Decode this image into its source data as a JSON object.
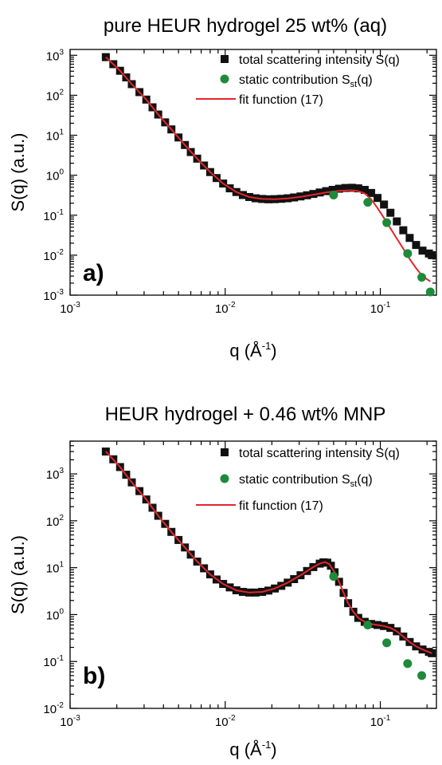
{
  "chart_data": [
    {
      "type": "scatter",
      "title": "pure HEUR hydrogel 25 wt% (aq)",
      "panel_label": "a)",
      "xlabel_main": "q (Å",
      "xlabel_sup": "-1",
      "xlabel_end": ")",
      "ylabel": "S(q) (a.u.)",
      "xscale": "log",
      "yscale": "log",
      "xlim": [
        0.001,
        0.23
      ],
      "ylim": [
        0.001,
        1400
      ],
      "x_ticks": [
        {
          "value": 0.001,
          "base": "10",
          "exp": "-3"
        },
        {
          "value": 0.01,
          "base": "10",
          "exp": "-2"
        },
        {
          "value": 0.1,
          "base": "10",
          "exp": "-1"
        }
      ],
      "y_ticks": [
        {
          "value": 0.001,
          "base": "10",
          "exp": "-3"
        },
        {
          "value": 0.01,
          "base": "10",
          "exp": "-2"
        },
        {
          "value": 0.1,
          "base": "10",
          "exp": "-1"
        },
        {
          "value": 1,
          "base": "10",
          "exp": "0"
        },
        {
          "value": 10,
          "base": "10",
          "exp": "1"
        },
        {
          "value": 100,
          "base": "10",
          "exp": "2"
        },
        {
          "value": 1000,
          "base": "10",
          "exp": "3"
        }
      ],
      "legend_position": "top-right",
      "series": [
        {
          "name": "total scattering intensity S(q)",
          "label_main": "total scattering intensity S(q)",
          "label_sub": "",
          "label_end": "",
          "marker": "square",
          "color": "#111111",
          "points": [
            [
              0.0017,
              900
            ],
            [
              0.0019,
              600
            ],
            [
              0.0021,
              410
            ],
            [
              0.0023,
              280
            ],
            [
              0.0025,
              190
            ],
            [
              0.0028,
              120
            ],
            [
              0.0031,
              78
            ],
            [
              0.0034,
              50
            ],
            [
              0.0037,
              33
            ],
            [
              0.0041,
              21
            ],
            [
              0.0045,
              14
            ],
            [
              0.005,
              8.8
            ],
            [
              0.0055,
              5.7
            ],
            [
              0.006,
              3.8
            ],
            [
              0.0066,
              2.6
            ],
            [
              0.0073,
              1.75
            ],
            [
              0.008,
              1.2
            ],
            [
              0.0088,
              0.85
            ],
            [
              0.0097,
              0.62
            ],
            [
              0.0107,
              0.47
            ],
            [
              0.0118,
              0.38
            ],
            [
              0.013,
              0.32
            ],
            [
              0.0143,
              0.285
            ],
            [
              0.0157,
              0.265
            ],
            [
              0.0173,
              0.255
            ],
            [
              0.019,
              0.25
            ],
            [
              0.0209,
              0.252
            ],
            [
              0.023,
              0.257
            ],
            [
              0.0253,
              0.265
            ],
            [
              0.0278,
              0.278
            ],
            [
              0.0306,
              0.295
            ],
            [
              0.0337,
              0.315
            ],
            [
              0.037,
              0.34
            ],
            [
              0.0407,
              0.37
            ],
            [
              0.0448,
              0.4
            ],
            [
              0.0493,
              0.43
            ],
            [
              0.0542,
              0.46
            ],
            [
              0.0596,
              0.48
            ],
            [
              0.0656,
              0.485
            ],
            [
              0.0721,
              0.47
            ],
            [
              0.0793,
              0.43
            ],
            [
              0.0873,
              0.36
            ],
            [
              0.096,
              0.27
            ],
            [
              0.1056,
              0.185
            ],
            [
              0.1162,
              0.115
            ],
            [
              0.1278,
              0.07
            ],
            [
              0.1406,
              0.042
            ],
            [
              0.1546,
              0.027
            ],
            [
              0.1701,
              0.018
            ],
            [
              0.1871,
              0.013
            ],
            [
              0.2058,
              0.011
            ],
            [
              0.215,
              0.01
            ]
          ]
        },
        {
          "name": "static contribution Sst(q)",
          "label_main": "static contribution S",
          "label_sub": "st",
          "label_end": "(q)",
          "marker": "circle",
          "color": "#1e8a3a",
          "points": [
            [
              0.05,
              0.32
            ],
            [
              0.083,
              0.21
            ],
            [
              0.11,
              0.065
            ],
            [
              0.15,
              0.011
            ],
            [
              0.185,
              0.0028
            ],
            [
              0.21,
              0.0012
            ]
          ]
        },
        {
          "name": "fit function (17)",
          "label_main": "fit function (17)",
          "label_sub": "",
          "label_end": "",
          "marker": "line",
          "color": "#e3262a",
          "points": [
            [
              0.0017,
              900
            ],
            [
              0.0021,
              410
            ],
            [
              0.0025,
              190
            ],
            [
              0.0031,
              78
            ],
            [
              0.0037,
              33
            ],
            [
              0.0045,
              14
            ],
            [
              0.0055,
              5.7
            ],
            [
              0.0066,
              2.6
            ],
            [
              0.008,
              1.2
            ],
            [
              0.0097,
              0.62
            ],
            [
              0.0118,
              0.38
            ],
            [
              0.0143,
              0.285
            ],
            [
              0.0173,
              0.255
            ],
            [
              0.0209,
              0.25
            ],
            [
              0.0253,
              0.262
            ],
            [
              0.0306,
              0.288
            ],
            [
              0.037,
              0.325
            ],
            [
              0.0448,
              0.37
            ],
            [
              0.0542,
              0.405
            ],
            [
              0.0656,
              0.42
            ],
            [
              0.0721,
              0.4
            ],
            [
              0.0793,
              0.35
            ],
            [
              0.0873,
              0.25
            ],
            [
              0.096,
              0.15
            ],
            [
              0.1056,
              0.085
            ],
            [
              0.1162,
              0.047
            ],
            [
              0.1278,
              0.026
            ],
            [
              0.1406,
              0.0145
            ],
            [
              0.1546,
              0.008
            ],
            [
              0.1701,
              0.0047
            ],
            [
              0.1871,
              0.003
            ],
            [
              0.21,
              0.0022
            ]
          ]
        }
      ]
    },
    {
      "type": "scatter",
      "title": "HEUR hydrogel + 0.46 wt% MNP",
      "panel_label": "b)",
      "xlabel_main": "q (Å",
      "xlabel_sup": "-1",
      "xlabel_end": ")",
      "ylabel": "S(q) (a.u.)",
      "xscale": "log",
      "yscale": "log",
      "xlim": [
        0.001,
        0.23
      ],
      "ylim": [
        0.01,
        5000
      ],
      "x_ticks": [
        {
          "value": 0.001,
          "base": "10",
          "exp": "-3"
        },
        {
          "value": 0.01,
          "base": "10",
          "exp": "-2"
        },
        {
          "value": 0.1,
          "base": "10",
          "exp": "-1"
        }
      ],
      "y_ticks": [
        {
          "value": 0.01,
          "base": "10",
          "exp": "-2"
        },
        {
          "value": 0.1,
          "base": "10",
          "exp": "-1"
        },
        {
          "value": 1,
          "base": "10",
          "exp": "0"
        },
        {
          "value": 10,
          "base": "10",
          "exp": "1"
        },
        {
          "value": 100,
          "base": "10",
          "exp": "2"
        },
        {
          "value": 1000,
          "base": "10",
          "exp": "3"
        }
      ],
      "legend_position": "top-right",
      "series": [
        {
          "name": "total scattering intensity S(q)",
          "label_main": "total scattering intensity S(q)",
          "label_sub": "",
          "label_end": "",
          "marker": "square",
          "color": "#111111",
          "points": [
            [
              0.0017,
              3000
            ],
            [
              0.0019,
              2050
            ],
            [
              0.0021,
              1400
            ],
            [
              0.0023,
              960
            ],
            [
              0.0025,
              660
            ],
            [
              0.0028,
              430
            ],
            [
              0.0031,
              285
            ],
            [
              0.0034,
              190
            ],
            [
              0.0037,
              128
            ],
            [
              0.0041,
              86
            ],
            [
              0.0045,
              58
            ],
            [
              0.005,
              39
            ],
            [
              0.0055,
              27
            ],
            [
              0.006,
              19
            ],
            [
              0.0066,
              13.5
            ],
            [
              0.0073,
              9.7
            ],
            [
              0.008,
              7.2
            ],
            [
              0.0088,
              5.6
            ],
            [
              0.0097,
              4.5
            ],
            [
              0.0107,
              3.8
            ],
            [
              0.0118,
              3.3
            ],
            [
              0.013,
              3.05
            ],
            [
              0.0143,
              2.95
            ],
            [
              0.0157,
              2.95
            ],
            [
              0.0173,
              3.05
            ],
            [
              0.019,
              3.25
            ],
            [
              0.0209,
              3.6
            ],
            [
              0.023,
              4.1
            ],
            [
              0.0253,
              4.8
            ],
            [
              0.0278,
              5.7
            ],
            [
              0.0306,
              6.9
            ],
            [
              0.0337,
              8.5
            ],
            [
              0.037,
              10.3
            ],
            [
              0.0407,
              12.2
            ],
            [
              0.043,
              13.0
            ],
            [
              0.0455,
              12.8
            ],
            [
              0.048,
              11.0
            ],
            [
              0.0507,
              8.0
            ],
            [
              0.0542,
              5.0
            ],
            [
              0.058,
              2.9
            ],
            [
              0.062,
              1.75
            ],
            [
              0.067,
              1.15
            ],
            [
              0.0721,
              0.85
            ],
            [
              0.0793,
              0.7
            ],
            [
              0.0873,
              0.63
            ],
            [
              0.096,
              0.6
            ],
            [
              0.1056,
              0.57
            ],
            [
              0.1162,
              0.52
            ],
            [
              0.1278,
              0.44
            ],
            [
              0.1406,
              0.34
            ],
            [
              0.1546,
              0.26
            ],
            [
              0.1701,
              0.21
            ],
            [
              0.1871,
              0.18
            ],
            [
              0.2058,
              0.16
            ],
            [
              0.215,
              0.15
            ]
          ]
        },
        {
          "name": "static contribution Sst(q)",
          "label_main": "static contribution S",
          "label_sub": "st",
          "label_end": "(q)",
          "marker": "circle",
          "color": "#1e8a3a",
          "points": [
            [
              0.05,
              6.5
            ],
            [
              0.083,
              0.6
            ],
            [
              0.11,
              0.25
            ],
            [
              0.15,
              0.09
            ],
            [
              0.185,
              0.05
            ]
          ]
        },
        {
          "name": "fit function (17)",
          "label_main": "fit function (17)",
          "label_sub": "",
          "label_end": "",
          "marker": "line",
          "color": "#e3262a",
          "points": [
            [
              0.0017,
              3000
            ],
            [
              0.0021,
              1400
            ],
            [
              0.0025,
              660
            ],
            [
              0.0031,
              285
            ],
            [
              0.0037,
              128
            ],
            [
              0.0045,
              58
            ],
            [
              0.0055,
              27
            ],
            [
              0.0066,
              13.5
            ],
            [
              0.008,
              7.2
            ],
            [
              0.0097,
              4.5
            ],
            [
              0.0118,
              3.3
            ],
            [
              0.0143,
              2.95
            ],
            [
              0.0173,
              3.05
            ],
            [
              0.0209,
              3.6
            ],
            [
              0.0253,
              4.8
            ],
            [
              0.0306,
              6.9
            ],
            [
              0.037,
              10.3
            ],
            [
              0.0407,
              12.2
            ],
            [
              0.044,
              13.2
            ],
            [
              0.047,
              11.8
            ],
            [
              0.0507,
              8.0
            ],
            [
              0.0542,
              5.0
            ],
            [
              0.058,
              2.9
            ],
            [
              0.062,
              1.75
            ],
            [
              0.067,
              1.15
            ],
            [
              0.0721,
              0.85
            ],
            [
              0.0793,
              0.7
            ],
            [
              0.0873,
              0.63
            ],
            [
              0.096,
              0.6
            ],
            [
              0.1056,
              0.57
            ],
            [
              0.1162,
              0.52
            ],
            [
              0.1278,
              0.44
            ],
            [
              0.1406,
              0.34
            ],
            [
              0.1546,
              0.26
            ],
            [
              0.1701,
              0.21
            ],
            [
              0.1871,
              0.18
            ],
            [
              0.215,
              0.15
            ]
          ]
        }
      ]
    }
  ]
}
